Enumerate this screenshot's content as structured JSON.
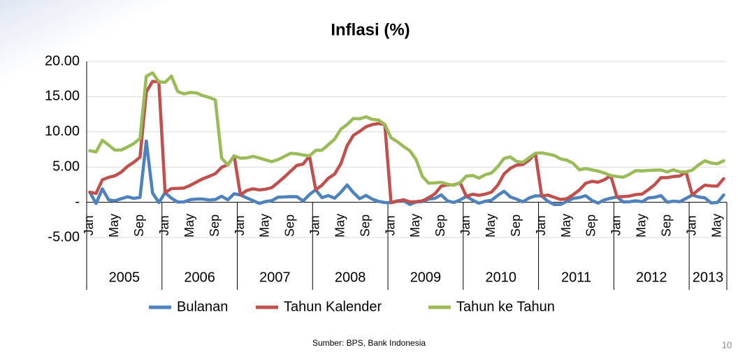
{
  "chart_data": {
    "type": "line",
    "title": "Inflasi (%)",
    "categories": [
      "Jan",
      null,
      null,
      null,
      "May",
      null,
      null,
      null,
      "Sep",
      null,
      null,
      null,
      "Jan",
      null,
      null,
      null,
      "May",
      null,
      null,
      null,
      "Sep",
      null,
      null,
      null,
      "Jan",
      null,
      null,
      null,
      "May",
      null,
      null,
      null,
      "Sep",
      null,
      null,
      null,
      "Jan",
      null,
      null,
      null,
      "May",
      null,
      null,
      null,
      "Sep",
      null,
      null,
      null,
      "Jan",
      null,
      null,
      null,
      "May",
      null,
      null,
      null,
      "Sep",
      null,
      null,
      null,
      "Jan",
      null,
      null,
      null,
      "May",
      null,
      null,
      null,
      "Sep",
      null,
      null,
      null,
      "Jan",
      null,
      null,
      null,
      "May",
      null,
      null,
      null,
      "Sep",
      null,
      null,
      null,
      "Jan",
      null,
      null,
      null,
      "May",
      null,
      null,
      null,
      "Sep",
      null,
      null,
      null,
      "Jan",
      null,
      null,
      null,
      "May",
      null
    ],
    "year_labels": [
      "2005",
      "2006",
      "2007",
      "2008",
      "2009",
      "2010",
      "2011",
      "2012",
      "2013"
    ],
    "series": [
      {
        "name": "Bulanan",
        "color": "#4f81bd",
        "values": [
          1.43,
          -0.17,
          1.91,
          0.34,
          0.21,
          0.5,
          0.78,
          0.55,
          0.69,
          8.7,
          1.31,
          -0.04,
          1.36,
          0.58,
          0.03,
          0.05,
          0.37,
          0.45,
          0.45,
          0.33,
          0.38,
          0.86,
          0.34,
          1.21,
          1.04,
          0.62,
          0.24,
          -0.16,
          0.1,
          0.23,
          0.72,
          0.75,
          0.8,
          0.79,
          0.18,
          1.1,
          1.77,
          0.65,
          0.95,
          0.57,
          1.41,
          2.46,
          1.37,
          0.51,
          0.97,
          0.45,
          0.12,
          -0.04,
          -0.07,
          0.21,
          0.22,
          -0.31,
          0.04,
          0.11,
          0.45,
          0.56,
          1.05,
          0.19,
          -0.03,
          0.33,
          0.84,
          0.3,
          -0.14,
          0.15,
          0.29,
          0.97,
          1.57,
          0.76,
          0.44,
          0.06,
          0.6,
          0.92,
          0.89,
          0.13,
          -0.32,
          -0.31,
          0.12,
          0.55,
          0.67,
          0.93,
          0.27,
          -0.12,
          0.34,
          0.57,
          0.76,
          0.05,
          0.07,
          0.21,
          0.07,
          0.62,
          0.7,
          0.95,
          0.01,
          0.16,
          0.07,
          0.54,
          1.03,
          0.75,
          0.63,
          -0.1,
          -0.03,
          1.03
        ]
      },
      {
        "name": "Tahun Kalender",
        "color": "#c0504d",
        "values": [
          1.43,
          1.26,
          3.19,
          3.54,
          3.76,
          4.28,
          5.09,
          5.68,
          6.41,
          15.65,
          17.16,
          17.11,
          1.36,
          1.94,
          1.97,
          2.02,
          2.4,
          2.87,
          3.33,
          3.67,
          4.06,
          4.96,
          5.32,
          6.6,
          1.04,
          1.67,
          1.91,
          1.75,
          1.85,
          2.08,
          2.81,
          3.58,
          4.41,
          5.24,
          5.43,
          6.59,
          1.77,
          2.43,
          3.41,
          3.99,
          5.47,
          8.03,
          9.51,
          10.07,
          10.72,
          11.04,
          11.18,
          11.06,
          -0.07,
          0.14,
          0.36,
          0.05,
          0.09,
          0.2,
          0.65,
          1.21,
          2.28,
          2.48,
          2.45,
          2.78,
          0.84,
          1.14,
          0.99,
          1.15,
          1.44,
          2.42,
          4.02,
          4.82,
          5.28,
          5.35,
          5.98,
          6.96,
          0.89,
          1.02,
          0.7,
          0.39,
          0.51,
          1.06,
          1.74,
          2.69,
          2.97,
          2.85,
          3.2,
          3.79,
          0.76,
          0.81,
          0.88,
          1.09,
          1.16,
          1.79,
          2.5,
          3.49,
          3.49,
          3.66,
          3.73,
          4.3,
          1.03,
          1.79,
          2.43,
          2.32,
          2.3,
          3.35
        ]
      },
      {
        "name": "Tahun ke Tahun",
        "color": "#9bbb59",
        "values": [
          7.32,
          7.15,
          8.81,
          8.12,
          7.4,
          7.42,
          7.84,
          8.33,
          9.06,
          17.89,
          18.38,
          17.11,
          17.03,
          17.92,
          15.74,
          15.4,
          15.6,
          15.53,
          15.15,
          14.9,
          14.55,
          6.29,
          5.27,
          6.6,
          6.26,
          6.3,
          6.52,
          6.29,
          6.01,
          5.77,
          6.06,
          6.51,
          6.95,
          6.88,
          6.71,
          6.59,
          7.36,
          7.4,
          8.17,
          8.96,
          10.38,
          11.03,
          11.9,
          11.85,
          12.14,
          11.77,
          11.68,
          11.06,
          9.17,
          8.6,
          7.92,
          7.31,
          6.04,
          3.65,
          2.71,
          2.75,
          2.83,
          2.57,
          2.41,
          2.78,
          3.72,
          3.81,
          3.43,
          3.91,
          4.16,
          5.05,
          6.22,
          6.44,
          5.8,
          5.67,
          6.33,
          6.96,
          7.02,
          6.84,
          6.65,
          6.16,
          5.98,
          5.54,
          4.61,
          4.79,
          4.61,
          4.42,
          4.15,
          3.79,
          3.65,
          3.56,
          3.97,
          4.5,
          4.45,
          4.53,
          4.56,
          4.58,
          4.31,
          4.61,
          4.32,
          4.3,
          4.57,
          5.31,
          5.9,
          5.57,
          5.47,
          5.9
        ]
      }
    ],
    "ylim": [
      -5,
      20
    ],
    "yticks": [
      {
        "value": 20,
        "label": "20.00"
      },
      {
        "value": 15,
        "label": "15.00"
      },
      {
        "value": 10,
        "label": "10.00"
      },
      {
        "value": 5,
        "label": "5.00"
      },
      {
        "value": 0,
        "label": "-"
      },
      {
        "value": -5,
        "label": "-5.00"
      }
    ],
    "grid": true,
    "legend": "bottom",
    "source": "Sumber: BPS, Bank Indonesia",
    "page_number": "10"
  }
}
